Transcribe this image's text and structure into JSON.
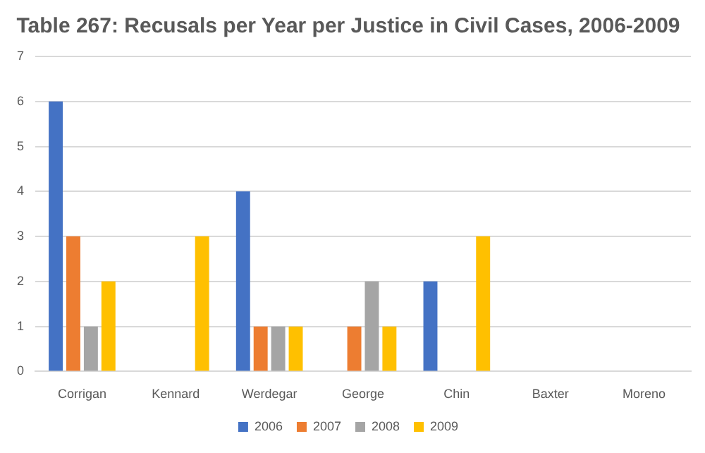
{
  "chart_data": {
    "type": "bar",
    "title": "Table 267: Recusals per Year per Justice in Civil Cases, 2006-2009",
    "categories": [
      "Corrigan",
      "Kennard",
      "Werdegar",
      "George",
      "Chin",
      "Baxter",
      "Moreno"
    ],
    "series": [
      {
        "name": "2006",
        "color": "#4472c4",
        "values": [
          6,
          0,
          4,
          0,
          2,
          0,
          0
        ]
      },
      {
        "name": "2007",
        "color": "#ed7d31",
        "values": [
          3,
          0,
          1,
          1,
          0,
          0,
          0
        ]
      },
      {
        "name": "2008",
        "color": "#a5a5a5",
        "values": [
          1,
          0,
          1,
          2,
          0,
          0,
          0
        ]
      },
      {
        "name": "2009",
        "color": "#ffc000",
        "values": [
          2,
          3,
          1,
          1,
          3,
          0,
          0
        ]
      }
    ],
    "ylim": [
      0,
      7
    ],
    "yticks": [
      0,
      1,
      2,
      3,
      4,
      5,
      6,
      7
    ],
    "grid": "y",
    "legend": "bottom"
  }
}
